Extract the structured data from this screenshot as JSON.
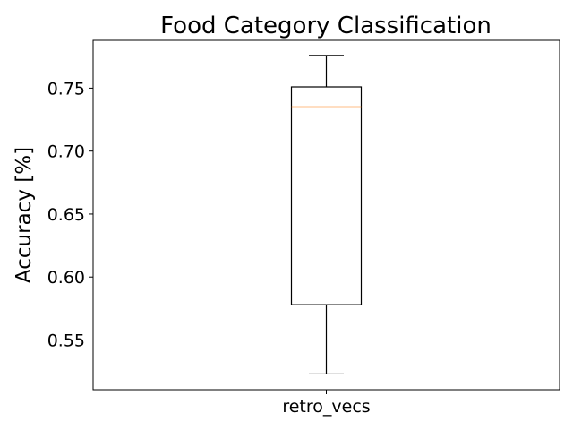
{
  "chart_data": {
    "type": "box",
    "title": "Food Category Classification",
    "xlabel": "",
    "ylabel": "Accuracy [%]",
    "categories": [
      "retro_vecs"
    ],
    "boxes": [
      {
        "name": "retro_vecs",
        "whisker_low": 0.523,
        "q1": 0.578,
        "median": 0.735,
        "q3": 0.751,
        "whisker_high": 0.776
      }
    ],
    "yticks": [
      0.55,
      0.6,
      0.65,
      0.7,
      0.75
    ],
    "ytick_labels": [
      "0.55",
      "0.60",
      "0.65",
      "0.70",
      "0.75"
    ],
    "ylim": [
      0.5105,
      0.788
    ],
    "grid": false,
    "colors": {
      "box": "#000000",
      "median": "#ff7f0e",
      "axes": "#000000",
      "background": "#ffffff"
    }
  }
}
